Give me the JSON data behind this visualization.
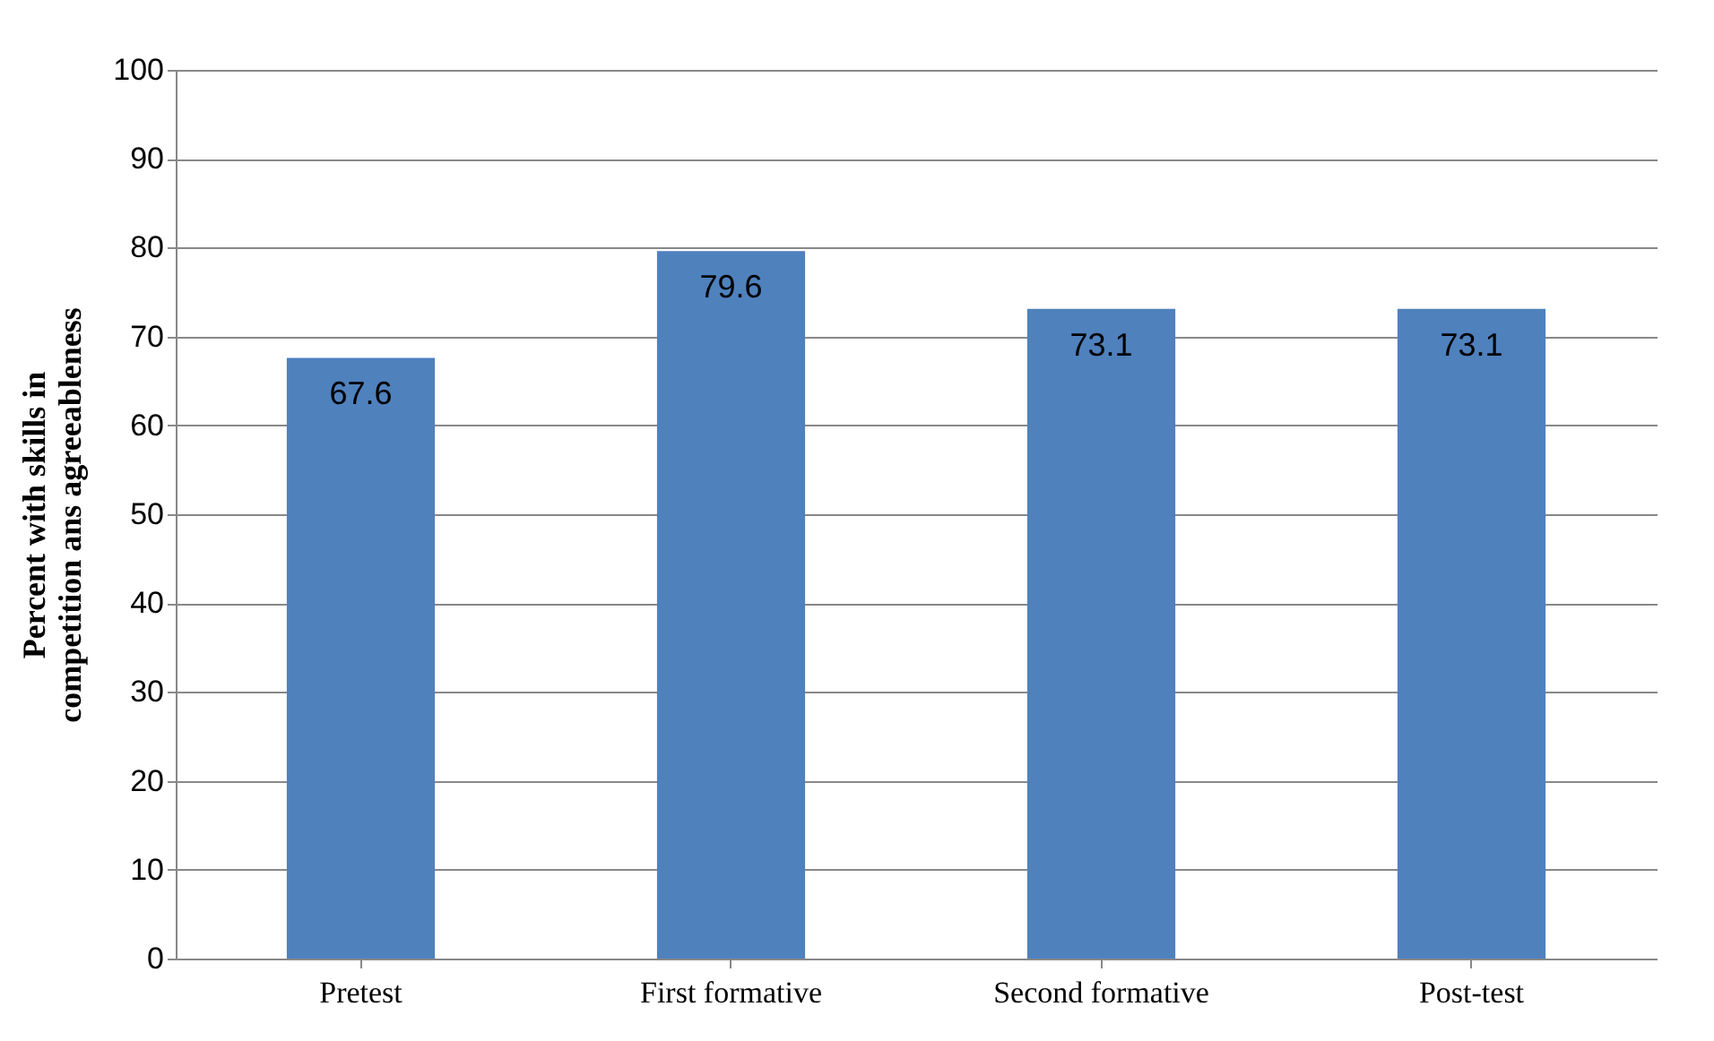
{
  "chart_data": {
    "type": "bar",
    "ylabel": "Percent with skills in competition ans agreeableness",
    "categories": [
      "Pretest",
      "First formative",
      "Second formative",
      "Post-test"
    ],
    "values": [
      67.6,
      79.6,
      73.1,
      73.1
    ],
    "color": "#4f81bd",
    "ylim": [
      0,
      100
    ],
    "yticks": [
      0,
      10,
      20,
      30,
      40,
      50,
      60,
      70,
      80,
      90,
      100
    ],
    "grid": "y",
    "data_labels": true
  }
}
